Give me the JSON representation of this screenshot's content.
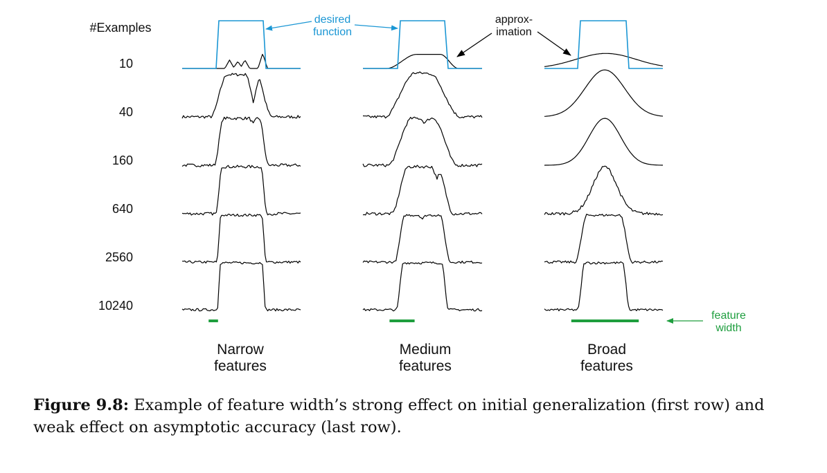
{
  "figure": {
    "row_header": "#Examples",
    "rows": [
      "10",
      "40",
      "160",
      "640",
      "2560",
      "10240"
    ],
    "columns": [
      {
        "line1": "Narrow",
        "line2": "features"
      },
      {
        "line1": "Medium",
        "line2": "features"
      },
      {
        "line1": "Broad",
        "line2": "features"
      }
    ],
    "annotations": {
      "desired_function": {
        "line1": "desired",
        "line2": "function"
      },
      "approximation": {
        "line1": "approx-",
        "line2": "imation"
      },
      "feature_width": {
        "line1": "feature",
        "line2": "width"
      }
    },
    "colors": {
      "desired": "#1a96d4",
      "approximation": "#000000",
      "feature_width": "#1e9e3e"
    },
    "feature_width_fraction": [
      0.08,
      0.21,
      0.57
    ]
  },
  "caption": {
    "label": "Figure 9.8:",
    "text": "Example of feature width’s strong effect on initial generalization (first row) and weak effect on asymptotic accuracy (last row)."
  }
}
